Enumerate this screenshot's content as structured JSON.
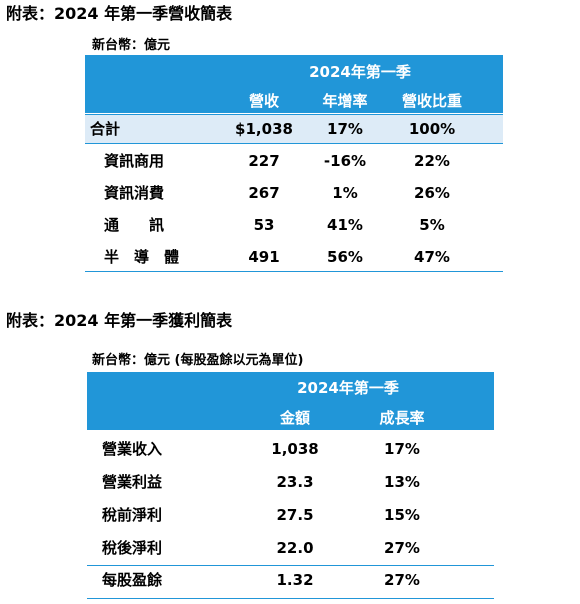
{
  "table1": {
    "title": "附表：2024 年第一季營收簡表",
    "unit": "新台幣：億元",
    "period": "2024年第一季",
    "headers": [
      "營收",
      "年增率",
      "營收比重"
    ],
    "total": [
      "合計",
      "$1,038",
      "17%",
      "100%"
    ],
    "rows": [
      [
        "資訊商用",
        "227",
        "-16%",
        "22%"
      ],
      [
        "資訊消費",
        "267",
        "1%",
        "26%"
      ],
      [
        "通　　訊",
        "53",
        "41%",
        "5%"
      ],
      [
        "半　導　體",
        "491",
        "56%",
        "47%"
      ]
    ]
  },
  "table2": {
    "title": "附表：2024 年第一季獲利簡表",
    "unit": "新台幣：億元 (每股盈餘以元為單位)",
    "period": "2024年第一季",
    "headers": [
      "金額",
      "成長率"
    ],
    "rows": [
      [
        "營業收入",
        "1,038",
        "17%"
      ],
      [
        "營業利益",
        "23.3",
        "13%"
      ],
      [
        "稅前淨利",
        "27.5",
        "15%"
      ],
      [
        "稅後淨利",
        "22.0",
        "27%"
      ]
    ],
    "last": [
      "每股盈餘",
      "1.32",
      "27%"
    ]
  }
}
